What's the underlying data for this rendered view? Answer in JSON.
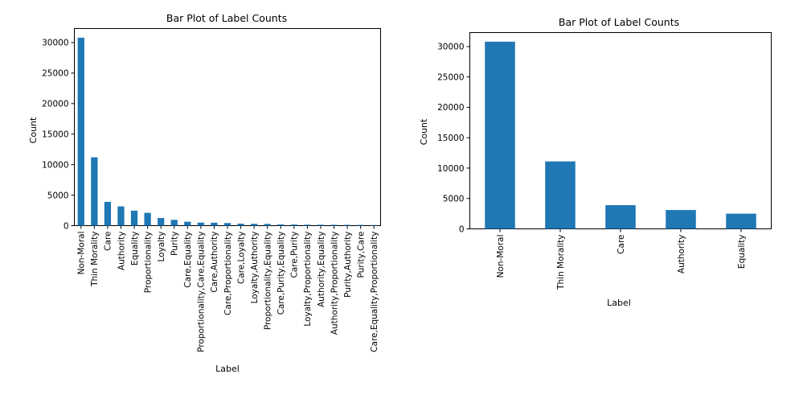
{
  "chart_data": [
    {
      "type": "bar",
      "title": "Bar Plot of Label Counts",
      "xlabel": "Label",
      "ylabel": "Count",
      "ylim": [
        0,
        32300
      ],
      "yticks": [
        "0",
        "5000",
        "10000",
        "15000",
        "20000",
        "25000",
        "30000"
      ],
      "ytick_values": [
        0,
        5000,
        10000,
        15000,
        20000,
        25000,
        30000
      ],
      "categories": [
        "Non-Moral",
        "Thin Morality",
        "Care",
        "Authority",
        "Equality",
        "Proportionality",
        "Loyalty",
        "Purity",
        "Care,Equality",
        "Proportionality,Care,Equality",
        "Care,Authority",
        "Care,Proportionality",
        "Care,Loyalty",
        "Loyalty,Authority",
        "Proportionality,Equality",
        "Care,Purity,Equality",
        "Care,Purity",
        "Loyalty,Proportionality",
        "Authority,Equality",
        "Authority,Proportionality",
        "Purity,Authority",
        "Purity,Care",
        "Care,Equality,Proportionality"
      ],
      "values": [
        30800,
        11200,
        3900,
        3150,
        2450,
        2100,
        1250,
        950,
        650,
        500,
        480,
        430,
        320,
        300,
        280,
        200,
        180,
        160,
        150,
        140,
        130,
        120,
        100
      ],
      "color": "#1f77b4",
      "grid": false
    },
    {
      "type": "bar",
      "title": "Bar Plot of Label Counts",
      "xlabel": "Label",
      "ylabel": "Count",
      "ylim": [
        0,
        32300
      ],
      "yticks": [
        "0",
        "5000",
        "10000",
        "15000",
        "20000",
        "25000",
        "30000"
      ],
      "ytick_values": [
        0,
        5000,
        10000,
        15000,
        20000,
        25000,
        30000
      ],
      "categories": [
        "Non-Moral",
        "Thin Morality",
        "Care",
        "Authority",
        "Equality"
      ],
      "values": [
        30800,
        11100,
        3900,
        3100,
        2500
      ],
      "color": "#1f77b4",
      "grid": false
    }
  ]
}
